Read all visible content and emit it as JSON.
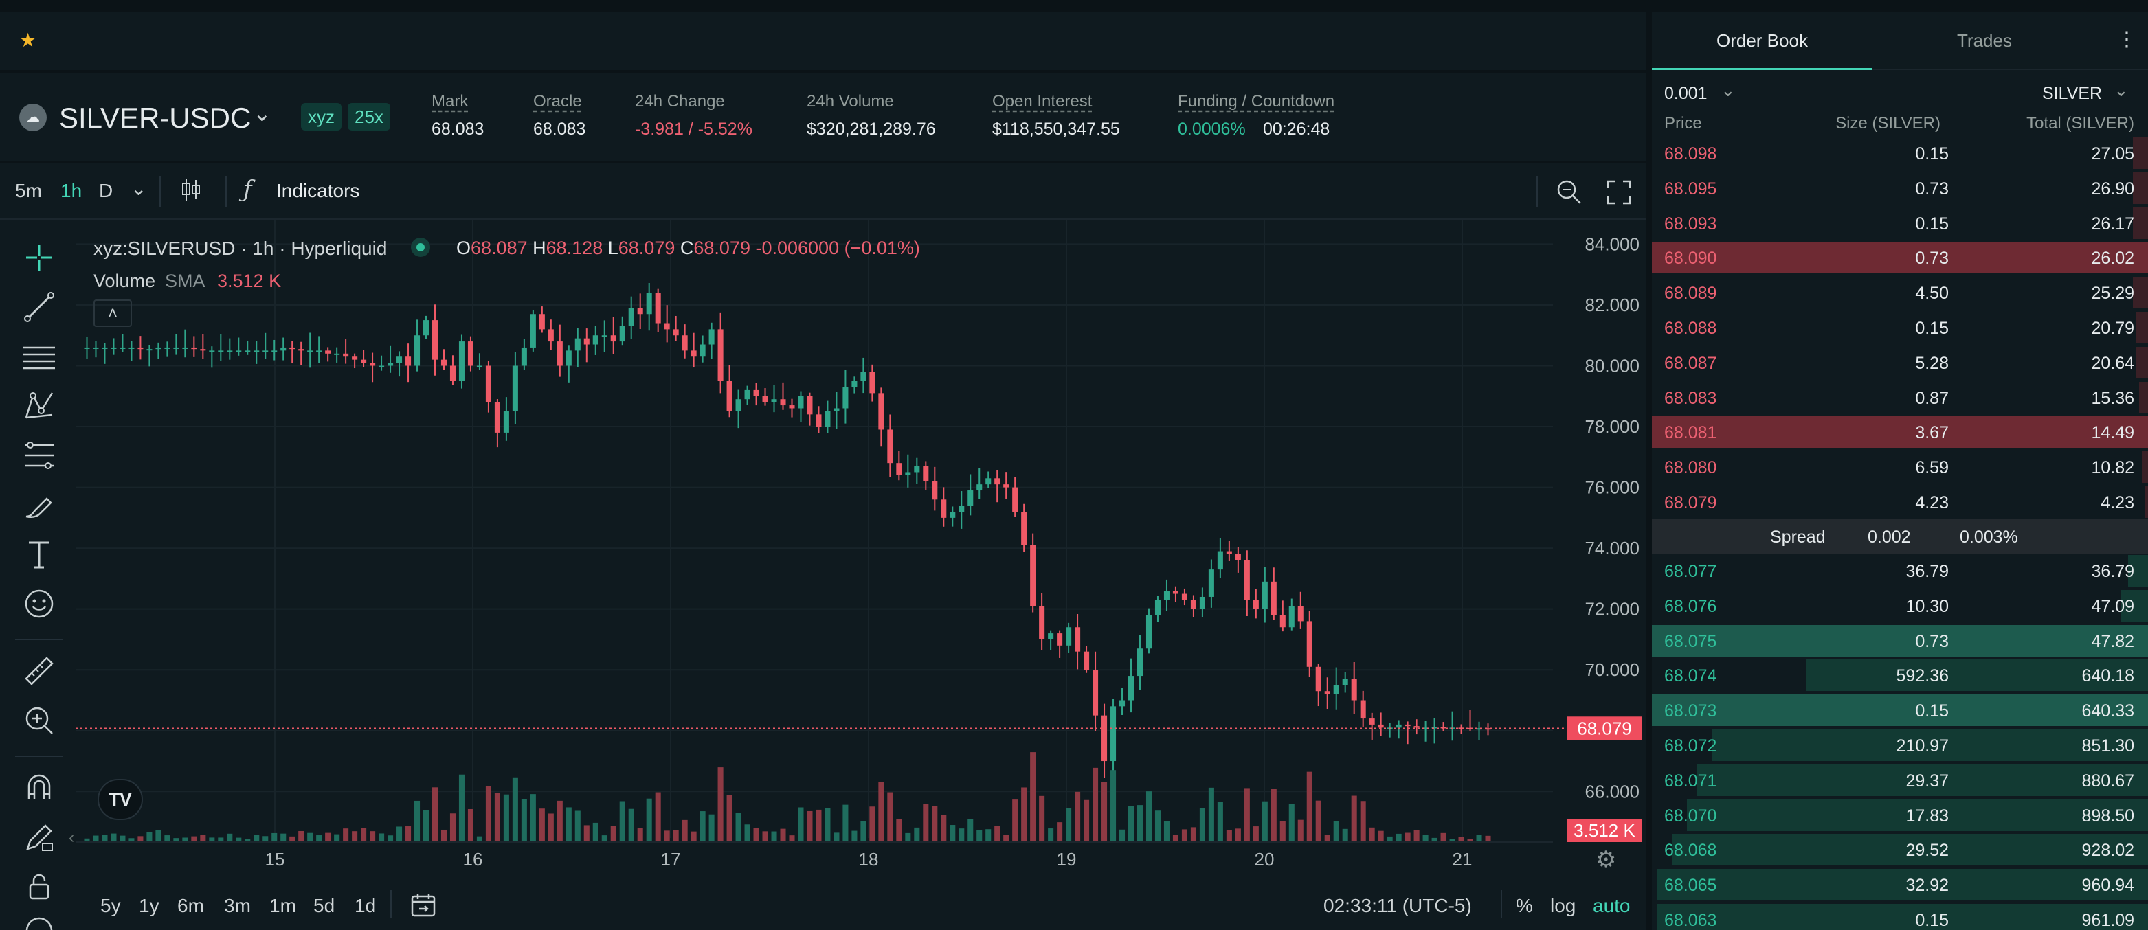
{
  "header": {
    "favorite_icon": "star-icon",
    "symbol": "SILVER-USDC",
    "dex_tag": "xyz",
    "leverage": "25x",
    "stats": [
      {
        "label": "Mark",
        "value": "68.083",
        "color": "white",
        "underline": true
      },
      {
        "label": "Oracle",
        "value": "68.083",
        "color": "white",
        "underline": true
      },
      {
        "label": "24h Change",
        "value": "-3.981 / -5.52%",
        "color": "red",
        "underline": false
      },
      {
        "label": "24h Volume",
        "value": "$320,281,289.76",
        "color": "white",
        "underline": false
      },
      {
        "label": "Open Interest",
        "value": "$118,550,347.55",
        "color": "white",
        "underline": true
      },
      {
        "label": "Funding / Countdown",
        "value": "0.0006%",
        "value2": "00:26:48",
        "color": "green",
        "underline": true
      }
    ]
  },
  "toolbar": {
    "intervals": [
      "5m",
      "1h",
      "D"
    ],
    "active_interval": "1h",
    "indicators_label": "Indicators"
  },
  "legend": {
    "title": "xyz:SILVERUSD · 1h · Hyperliquid",
    "o_label": "O",
    "o": "68.087",
    "h_label": "H",
    "h": "68.128",
    "l_label": "L",
    "l": "68.079",
    "c_label": "C",
    "c": "68.079",
    "change": "-0.006000 (−0.01%)",
    "volume_label": "Volume",
    "sma_label": "SMA",
    "volume_value": "3.512 K"
  },
  "chart_data": {
    "type": "candlestick",
    "price_axis": [
      "84.000",
      "82.000",
      "80.000",
      "78.000",
      "76.000",
      "74.000",
      "72.000",
      "70.000",
      "68.000",
      "66.000"
    ],
    "ylim": [
      64.2,
      84.8
    ],
    "x_ticks": [
      "15",
      "16",
      "17",
      "18",
      "19",
      "20",
      "21"
    ],
    "last_price": "68.079",
    "last_volume": "3.512 K",
    "colors": {
      "up": "#2fa58a",
      "down": "#ef5a67"
    },
    "close_path": [
      80.6,
      80.6,
      80.6,
      80.6,
      80.6,
      80.6,
      80.55,
      80.55,
      80.6,
      80.6,
      80.6,
      80.6,
      80.55,
      80.5,
      80.5,
      80.5,
      80.5,
      80.5,
      80.5,
      80.5,
      80.5,
      80.5,
      80.6,
      80.55,
      80.5,
      80.5,
      80.5,
      80.4,
      80.4,
      80.3,
      80.2,
      80.1,
      80.0,
      80.0,
      80.1,
      80.3,
      80.0,
      81.0,
      81.5,
      80.2,
      80.0,
      79.5,
      80.8,
      80.0,
      80.0,
      78.8,
      77.8,
      78.5,
      80.0,
      80.6,
      81.7,
      81.2,
      80.8,
      80.0,
      80.5,
      80.9,
      80.7,
      81.0,
      81.0,
      80.8,
      81.3,
      81.9,
      81.7,
      82.4,
      81.4,
      81.2,
      81.0,
      80.5,
      80.3,
      80.7,
      81.2,
      79.5,
      78.5,
      78.9,
      79.2,
      79.0,
      78.8,
      78.9,
      78.7,
      78.6,
      79.0,
      78.4,
      78.0,
      78.5,
      78.6,
      79.3,
      79.5,
      79.8,
      79.1,
      77.9,
      76.8,
      76.4,
      76.5,
      76.7,
      76.2,
      75.6,
      75.0,
      75.2,
      75.4,
      75.9,
      76.1,
      76.3,
      76.1,
      76.0,
      75.2,
      74.1,
      72.1,
      71.0,
      71.2,
      70.8,
      71.4,
      70.6,
      70.0,
      68.5,
      67.0,
      68.8,
      69.0,
      69.8,
      70.7,
      71.8,
      72.3,
      72.6,
      72.5,
      72.3,
      72.0,
      72.4,
      73.3,
      73.9,
      73.8,
      73.6,
      72.3,
      72.0,
      72.9,
      71.8,
      71.4,
      72.1,
      71.6,
      70.1,
      69.3,
      69.2,
      69.5,
      69.7,
      69.0,
      68.4,
      68.2,
      68.1,
      68.1,
      68.2,
      68.15,
      68.1,
      68.1,
      68.12,
      68.1,
      68.1,
      68.09,
      68.08,
      68.08,
      68.079
    ]
  },
  "bottom_bar": {
    "periods": [
      "5y",
      "1y",
      "6m",
      "3m",
      "1m",
      "5d",
      "1d"
    ],
    "clock": "02:33:11 (UTC-5)",
    "percent_label": "%",
    "log_label": "log",
    "auto_label": "auto"
  },
  "orderbook": {
    "tabs": [
      "Order Book",
      "Trades"
    ],
    "active_tab": "Order Book",
    "tick_size": "0.001",
    "unit": "SILVER",
    "col_price": "Price",
    "col_size": "Size (SILVER)",
    "col_total": "Total (SILVER)",
    "asks": [
      {
        "price": "68.098",
        "size": "0.15",
        "total": "27.05",
        "depth": 0.03
      },
      {
        "price": "68.095",
        "size": "0.73",
        "total": "26.90",
        "depth": 0.03
      },
      {
        "price": "68.093",
        "size": "0.15",
        "total": "26.17",
        "depth": 0.03
      },
      {
        "price": "68.090",
        "size": "0.73",
        "total": "26.02",
        "depth": 0.03,
        "highlight": true
      },
      {
        "price": "68.089",
        "size": "4.50",
        "total": "25.29",
        "depth": 0.03
      },
      {
        "price": "68.088",
        "size": "0.15",
        "total": "20.79",
        "depth": 0.025
      },
      {
        "price": "68.087",
        "size": "5.28",
        "total": "20.64",
        "depth": 0.025
      },
      {
        "price": "68.083",
        "size": "0.87",
        "total": "15.36",
        "depth": 0.018
      },
      {
        "price": "68.081",
        "size": "3.67",
        "total": "14.49",
        "depth": 0.017,
        "highlight": true
      },
      {
        "price": "68.080",
        "size": "6.59",
        "total": "10.82",
        "depth": 0.013
      },
      {
        "price": "68.079",
        "size": "4.23",
        "total": "4.23",
        "depth": 0.005
      }
    ],
    "spread_label": "Spread",
    "spread_value": "0.002",
    "spread_pct": "0.003%",
    "bids": [
      {
        "price": "68.077",
        "size": "36.79",
        "total": "36.79",
        "depth": 0.04
      },
      {
        "price": "68.076",
        "size": "10.30",
        "total": "47.09",
        "depth": 0.055
      },
      {
        "price": "68.075",
        "size": "0.73",
        "total": "47.82",
        "depth": 0.056,
        "highlight": true
      },
      {
        "price": "68.074",
        "size": "592.36",
        "total": "640.18",
        "depth": 0.69
      },
      {
        "price": "68.073",
        "size": "0.15",
        "total": "640.33",
        "depth": 0.69,
        "highlight": true
      },
      {
        "price": "68.072",
        "size": "210.97",
        "total": "851.30",
        "depth": 0.88
      },
      {
        "price": "68.071",
        "size": "29.37",
        "total": "880.67",
        "depth": 0.91
      },
      {
        "price": "68.070",
        "size": "17.83",
        "total": "898.50",
        "depth": 0.93
      },
      {
        "price": "68.068",
        "size": "29.52",
        "total": "928.02",
        "depth": 0.96
      },
      {
        "price": "68.065",
        "size": "32.92",
        "total": "960.94",
        "depth": 0.99
      },
      {
        "price": "68.063",
        "size": "0.15",
        "total": "961.09",
        "depth": 0.99
      }
    ]
  }
}
